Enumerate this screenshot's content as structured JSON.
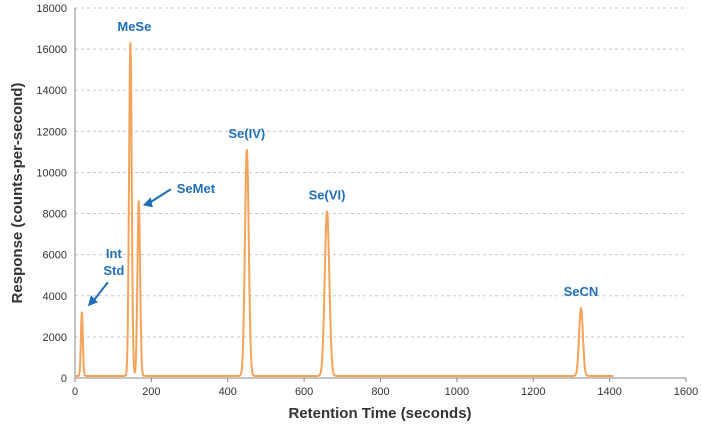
{
  "chart_data": {
    "type": "line",
    "title": "",
    "xlabel": "Retention Time (seconds)",
    "ylabel": "Response (counts-per-second)",
    "xlim": [
      0,
      1600
    ],
    "ylim": [
      0,
      18000
    ],
    "x_ticks": [
      0,
      200,
      400,
      600,
      800,
      1000,
      1200,
      1400,
      1600
    ],
    "y_ticks": [
      0,
      2000,
      4000,
      6000,
      8000,
      10000,
      12000,
      14000,
      16000,
      18000
    ],
    "grid": "horizontal dashed",
    "color": "#f5a35a",
    "label_color": "#1f6fb8",
    "baseline": 100,
    "trace_end": 1410,
    "peaks": [
      {
        "label": "Int Std",
        "label_lines": [
          "Int",
          "Std"
        ],
        "time": 18,
        "height": 3200,
        "width": 2.5
      },
      {
        "label": "MeSe",
        "time": 145,
        "height": 16300,
        "width": 3.5
      },
      {
        "label": "SeMet",
        "time": 167,
        "height": 8600,
        "width": 3.5
      },
      {
        "label": "Se(IV)",
        "time": 450,
        "height": 11100,
        "width": 5
      },
      {
        "label": "Se(VI)",
        "time": 660,
        "height": 8100,
        "width": 6
      },
      {
        "label": "SeCN",
        "time": 1325,
        "height": 3400,
        "width": 5
      }
    ]
  }
}
